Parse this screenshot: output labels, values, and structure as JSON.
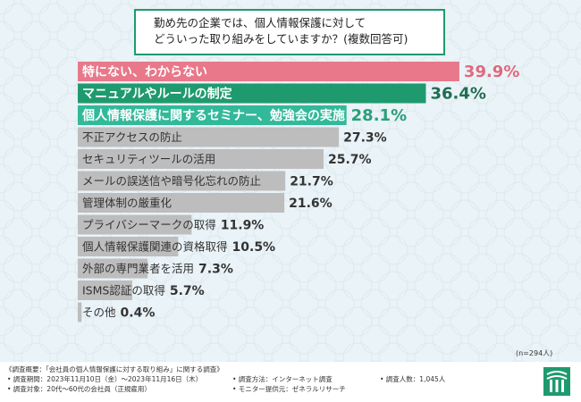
{
  "title": {
    "line1": "勤め先の企業では、個人情報保護に対して",
    "line2": "どういった取り組みをしていますか？(複数回答可)"
  },
  "chart_data": {
    "type": "bar",
    "orientation": "horizontal",
    "unit": "%",
    "categories": [
      "特にない、わからない",
      "マニュアルやルールの制定",
      "個人情報保護に関するセミナー、勉強会の実施",
      "不正アクセスの防止",
      "セキュリティツールの活用",
      "メールの誤送信や暗号化忘れの防止",
      "管理体制の厳重化",
      "プライバシーマークの取得",
      "個人情報保護関連の資格取得",
      "外部の専門業者を活用",
      "ISMS認証の取得",
      "その他"
    ],
    "values": [
      39.9,
      36.4,
      28.1,
      27.3,
      25.7,
      21.7,
      21.6,
      11.9,
      10.5,
      7.3,
      5.7,
      0.4
    ],
    "value_labels": [
      "39.9%",
      "36.4%",
      "28.1%",
      "27.3%",
      "25.7%",
      "21.7%",
      "21.6%",
      "11.9%",
      "10.5%",
      "7.3%",
      "5.7%",
      "0.4%"
    ],
    "bar_colors": [
      "#e8788a",
      "#1f9a6e",
      "#32b99a",
      "#bdbdbd",
      "#bdbdbd",
      "#bdbdbd",
      "#bdbdbd",
      "#bdbdbd",
      "#bdbdbd",
      "#bdbdbd",
      "#bdbdbd",
      "#bdbdbd"
    ],
    "label_colors": [
      "#ffffff",
      "#ffffff",
      "#ffffff",
      "#333333",
      "#333333",
      "#333333",
      "#333333",
      "#333333",
      "#333333",
      "#333333",
      "#333333",
      "#333333"
    ],
    "value_colors": [
      "#e06a7e",
      "#1f6e52",
      "#2a9f78",
      "#333333",
      "#333333",
      "#333333",
      "#333333",
      "#333333",
      "#333333",
      "#333333",
      "#333333",
      "#333333"
    ],
    "xlim": [
      0,
      40
    ]
  },
  "note": "(n=294人)",
  "footer": {
    "heading": "《調査概要：「会社員の個人情報保護に対する取り組み」に関する調査》",
    "period": "• 調査期間：2023年11月10日（金）〜2023年11月16日（木）",
    "method": "• 調査方法：インターネット調査",
    "count": "• 調査人数：1,045人",
    "target": "• 調査対象：20代〜60代の会社員（正規雇用）",
    "provider": "• モニター提供元：ゼネラルリサーチ"
  },
  "colors": {
    "accent": "#1f9a6e",
    "highlight": "#e8788a",
    "background": "#eaf3f7"
  },
  "logo_icon": "company-logo-icon"
}
